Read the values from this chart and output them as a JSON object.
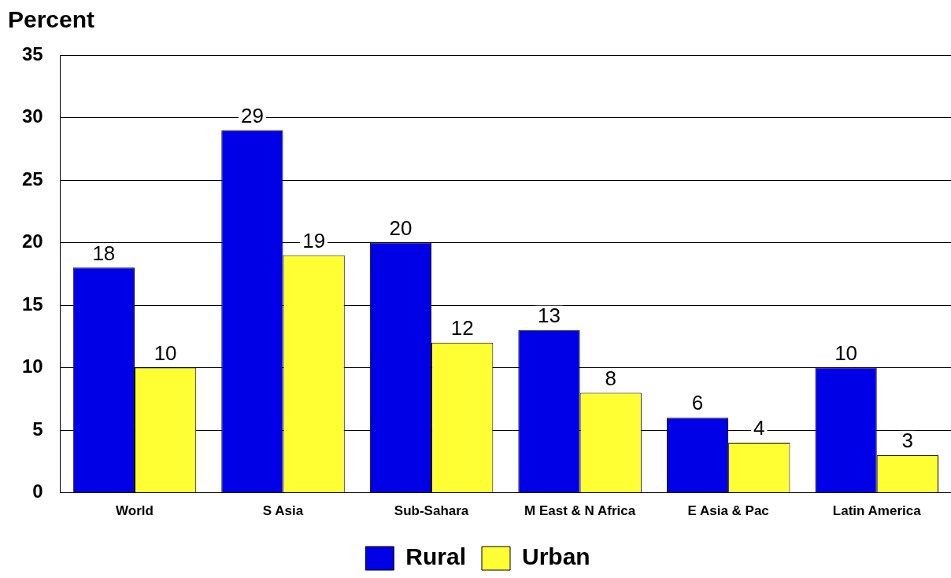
{
  "chart_data": {
    "type": "bar",
    "ylabel": "Percent",
    "categories": [
      "World",
      "S Asia",
      "Sub-Sahara",
      "M East & N Africa",
      "E Asia & Pac",
      "Latin America"
    ],
    "series": [
      {
        "name": "Rural",
        "color": "#0000e6",
        "values": [
          18,
          29,
          20,
          13,
          6,
          10
        ]
      },
      {
        "name": "Urban",
        "color": "#ffff33",
        "values": [
          10,
          19,
          12,
          8,
          4,
          3
        ]
      }
    ],
    "ylim": [
      0,
      35
    ],
    "yticks": [
      0,
      5,
      10,
      15,
      20,
      25,
      30,
      35
    ],
    "grid": "y",
    "legend": "bottom",
    "data_labels": true
  }
}
